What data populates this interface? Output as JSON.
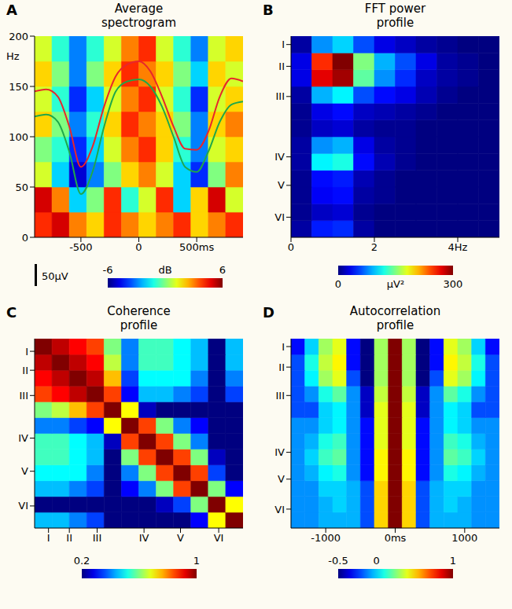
{
  "chart_data": [
    {
      "panel": "A",
      "type": "heatmap",
      "title": "Average spectrogram",
      "y_label": "Hz",
      "xlim": [
        -900,
        900
      ],
      "xticks": [
        -500,
        0,
        {
          "value": 500,
          "label": "500ms"
        }
      ],
      "ylim": [
        0,
        200
      ],
      "yticks": [
        0,
        50,
        100,
        150,
        200
      ],
      "x_edges": [
        -900,
        -750,
        -600,
        -450,
        -300,
        -150,
        0,
        150,
        300,
        450,
        600,
        750,
        900
      ],
      "y_edges": [
        0,
        25,
        50,
        75,
        100,
        125,
        150,
        175,
        200
      ],
      "cells": [
        [
          4,
          5,
          3,
          2,
          4,
          3,
          2,
          3,
          4,
          2,
          3,
          4
        ],
        [
          5,
          3,
          -2,
          0,
          4,
          -1,
          1,
          4,
          -2,
          2,
          5,
          1
        ],
        [
          1,
          -2,
          -5,
          -3,
          0,
          2,
          3,
          1,
          -2,
          -4,
          0,
          3
        ],
        [
          0,
          -1,
          -4,
          -2,
          1,
          3,
          4,
          2,
          -1,
          -3,
          1,
          2
        ],
        [
          2,
          0,
          -3,
          -1,
          2,
          4,
          3,
          2,
          0,
          -3,
          2,
          3
        ],
        [
          1,
          -1,
          -4,
          -2,
          1,
          3,
          4,
          1,
          -1,
          -4,
          1,
          2
        ],
        [
          2,
          0,
          -3,
          0,
          2,
          4,
          3,
          2,
          0,
          -2,
          2,
          1
        ],
        [
          1,
          -1,
          -3,
          -1,
          1,
          3,
          4,
          1,
          -1,
          -3,
          1,
          2
        ]
      ],
      "colorbar": {
        "range": [
          -6,
          6
        ],
        "ticks": [
          -6,
          6
        ],
        "label": "dB"
      },
      "x": [
        -900,
        -800,
        -700,
        -600,
        -500,
        -400,
        -300,
        -200,
        -100,
        0,
        100,
        200,
        300,
        400,
        500,
        600,
        700,
        800,
        900
      ],
      "series": [
        {
          "color": "#e8262b",
          "values": [
            145,
            147,
            140,
            110,
            70,
            90,
            130,
            160,
            172,
            175,
            165,
            140,
            110,
            88,
            87,
            105,
            140,
            158,
            155
          ]
        },
        {
          "color": "#1fa84a",
          "values": [
            120,
            122,
            115,
            85,
            43,
            65,
            110,
            145,
            155,
            157,
            150,
            130,
            100,
            70,
            65,
            85,
            115,
            132,
            135
          ]
        }
      ],
      "scale_bar": {
        "label": "50µV"
      }
    },
    {
      "panel": "B",
      "type": "heatmap",
      "title": "FFT power profile",
      "xlim": [
        0,
        5
      ],
      "xticks": [
        0,
        2,
        {
          "value": 4,
          "label": "4Hz"
        }
      ],
      "ylim": [
        0,
        12
      ],
      "yticks": [
        {
          "value": 11.5,
          "label": "I"
        },
        {
          "value": 10.2,
          "label": "II"
        },
        {
          "value": 8.4,
          "label": "III"
        },
        {
          "value": 4.8,
          "label": "IV"
        },
        {
          "value": 3.1,
          "label": "V"
        },
        {
          "value": 1.2,
          "label": "VI"
        }
      ],
      "x_edges": [
        0,
        0.5,
        1,
        1.5,
        2,
        2.5,
        3,
        3.5,
        4,
        4.5,
        5
      ],
      "y_edges": [
        0,
        1,
        2,
        3,
        4,
        5,
        6,
        7,
        8,
        9,
        10,
        11,
        12
      ],
      "cells": [
        [
          10,
          45,
          50,
          10,
          0,
          0,
          0,
          0,
          0,
          0
        ],
        [
          5,
          20,
          25,
          5,
          0,
          0,
          0,
          0,
          0,
          0
        ],
        [
          5,
          35,
          40,
          10,
          5,
          0,
          0,
          0,
          0,
          0
        ],
        [
          5,
          40,
          45,
          15,
          5,
          0,
          0,
          0,
          0,
          0
        ],
        [
          10,
          110,
          120,
          40,
          15,
          5,
          0,
          0,
          0,
          0
        ],
        [
          10,
          80,
          90,
          30,
          10,
          5,
          0,
          0,
          0,
          0
        ],
        [
          5,
          20,
          25,
          10,
          5,
          5,
          0,
          0,
          0,
          0
        ],
        [
          5,
          30,
          40,
          20,
          15,
          10,
          5,
          0,
          0,
          0
        ],
        [
          10,
          90,
          110,
          60,
          40,
          30,
          15,
          5,
          0,
          0
        ],
        [
          30,
          270,
          290,
          140,
          80,
          50,
          20,
          10,
          5,
          0
        ],
        [
          30,
          250,
          300,
          150,
          90,
          60,
          30,
          10,
          5,
          0
        ],
        [
          10,
          80,
          100,
          60,
          30,
          20,
          10,
          5,
          0,
          0
        ]
      ],
      "colorbar": {
        "range": [
          0,
          300
        ],
        "ticks": [
          0,
          300
        ],
        "label": "µV²"
      }
    },
    {
      "panel": "C",
      "type": "heatmap",
      "title": "Coherence profile",
      "xlim": [
        0,
        12
      ],
      "xticks": [
        {
          "value": 0.8,
          "label": "I"
        },
        {
          "value": 2,
          "label": "II"
        },
        {
          "value": 3.6,
          "label": "III"
        },
        {
          "value": 6.3,
          "label": "IV"
        },
        {
          "value": 8.4,
          "label": "V"
        },
        {
          "value": 10.6,
          "label": "VI"
        }
      ],
      "ylim": [
        0,
        12
      ],
      "yticks": [
        {
          "value": 11.2,
          "label": "I"
        },
        {
          "value": 10,
          "label": "II"
        },
        {
          "value": 8.4,
          "label": "III"
        },
        {
          "value": 5.7,
          "label": "IV"
        },
        {
          "value": 3.6,
          "label": "V"
        },
        {
          "value": 1.4,
          "label": "VI"
        }
      ],
      "x_edges": [
        0,
        1,
        2,
        3,
        4,
        5,
        6,
        7,
        8,
        9,
        10,
        11,
        12
      ],
      "y_edges": [
        0,
        1,
        2,
        3,
        4,
        5,
        6,
        7,
        8,
        9,
        10,
        11,
        12
      ],
      "cells": [
        [
          0.45,
          0.45,
          0.4,
          0.35,
          0.2,
          0.2,
          0.2,
          0.2,
          0.2,
          0.3,
          0.7,
          1
        ],
        [
          0.2,
          0.2,
          0.2,
          0.2,
          0.2,
          0.2,
          0.2,
          0.25,
          0.35,
          0.6,
          1,
          0.7
        ],
        [
          0.45,
          0.45,
          0.4,
          0.35,
          0.2,
          0.3,
          0.4,
          0.6,
          0.85,
          1,
          0.6,
          0.3
        ],
        [
          0.5,
          0.5,
          0.5,
          0.4,
          0.2,
          0.4,
          0.6,
          0.85,
          1,
          0.85,
          0.35,
          0.2
        ],
        [
          0.55,
          0.55,
          0.5,
          0.45,
          0.2,
          0.6,
          0.85,
          1,
          0.85,
          0.6,
          0.25,
          0.2
        ],
        [
          0.55,
          0.55,
          0.5,
          0.45,
          0.25,
          0.85,
          1,
          0.85,
          0.6,
          0.4,
          0.2,
          0.2
        ],
        [
          0.4,
          0.4,
          0.35,
          0.3,
          0.7,
          1,
          0.85,
          0.6,
          0.4,
          0.3,
          0.2,
          0.2
        ],
        [
          0.6,
          0.65,
          0.75,
          0.85,
          1,
          0.7,
          0.25,
          0.2,
          0.2,
          0.2,
          0.2,
          0.2
        ],
        [
          0.85,
          0.9,
          0.95,
          1,
          0.85,
          0.3,
          0.45,
          0.45,
          0.4,
          0.35,
          0.2,
          0.35
        ],
        [
          0.9,
          0.95,
          1,
          0.95,
          0.75,
          0.35,
          0.5,
          0.5,
          0.5,
          0.4,
          0.2,
          0.4
        ],
        [
          0.95,
          1,
          0.95,
          0.9,
          0.65,
          0.4,
          0.55,
          0.55,
          0.5,
          0.45,
          0.2,
          0.45
        ],
        [
          1,
          0.95,
          0.9,
          0.85,
          0.6,
          0.4,
          0.55,
          0.55,
          0.5,
          0.45,
          0.2,
          0.45
        ]
      ],
      "colorbar": {
        "range": [
          0.2,
          1
        ],
        "ticks": [
          0.2,
          1
        ]
      }
    },
    {
      "panel": "D",
      "type": "heatmap",
      "title": "Autocorrelation profile",
      "xlim": [
        -1500,
        1500
      ],
      "xticks": [
        -1000,
        {
          "value": 0,
          "label": "0ms"
        },
        1000
      ],
      "ylim": [
        0,
        12
      ],
      "yticks": [
        {
          "value": 11.5,
          "label": "I"
        },
        {
          "value": 10.2,
          "label": "II"
        },
        {
          "value": 8.4,
          "label": "III"
        },
        {
          "value": 4.8,
          "label": "IV"
        },
        {
          "value": 3.1,
          "label": "V"
        },
        {
          "value": 1.2,
          "label": "VI"
        }
      ],
      "x_edges": [
        -1500,
        -1300,
        -1100,
        -900,
        -700,
        -500,
        -300,
        -100,
        100,
        300,
        500,
        700,
        900,
        1100,
        1300,
        1500
      ],
      "y_edges": [
        0,
        1,
        2,
        3,
        4,
        5,
        6,
        7,
        8,
        9,
        10,
        11,
        12
      ],
      "cells": [
        [
          -0.1,
          -0.1,
          -0.05,
          -0.05,
          -0.05,
          -0.2,
          0.5,
          1,
          0.5,
          -0.2,
          -0.05,
          -0.05,
          -0.05,
          -0.1,
          -0.1
        ],
        [
          -0.1,
          -0.1,
          -0.05,
          0,
          -0.05,
          -0.2,
          0.5,
          1,
          0.5,
          -0.2,
          -0.05,
          0,
          -0.05,
          -0.1,
          -0.1
        ],
        [
          -0.1,
          -0.1,
          0,
          0,
          -0.05,
          -0.2,
          0.5,
          1,
          0.5,
          -0.2,
          -0.05,
          0,
          0,
          -0.1,
          -0.1
        ],
        [
          -0.1,
          -0.05,
          0.05,
          0.1,
          -0.1,
          -0.3,
          0.45,
          1,
          0.45,
          -0.3,
          -0.1,
          0.1,
          0.05,
          -0.05,
          -0.1
        ],
        [
          -0.1,
          0,
          0.15,
          0.2,
          -0.1,
          -0.3,
          0.45,
          1,
          0.45,
          -0.3,
          -0.1,
          0.2,
          0.15,
          0,
          -0.1
        ],
        [
          -0.1,
          -0.05,
          0.1,
          0.15,
          -0.1,
          -0.3,
          0.4,
          1,
          0.4,
          -0.3,
          -0.1,
          0.15,
          0.1,
          -0.05,
          -0.1
        ],
        [
          -0.1,
          -0.1,
          0,
          0.05,
          -0.1,
          -0.3,
          0.4,
          1,
          0.4,
          -0.3,
          -0.1,
          0.05,
          0,
          -0.1,
          -0.1
        ],
        [
          -0.2,
          -0.2,
          0,
          0.05,
          -0.1,
          -0.4,
          0.4,
          1,
          0.4,
          -0.4,
          -0.1,
          0.05,
          0,
          -0.2,
          -0.2
        ],
        [
          -0.2,
          -0.1,
          0.1,
          0.2,
          -0.1,
          -0.4,
          0.35,
          1,
          0.35,
          -0.4,
          -0.1,
          0.2,
          0.1,
          -0.1,
          -0.2
        ],
        [
          -0.2,
          0.05,
          0.3,
          0.4,
          -0.2,
          -0.5,
          0.3,
          1,
          0.3,
          -0.5,
          -0.2,
          0.4,
          0.3,
          0.05,
          -0.2
        ],
        [
          -0.2,
          0.1,
          0.35,
          0.45,
          -0.3,
          -0.5,
          0.3,
          1,
          0.3,
          -0.5,
          -0.3,
          0.45,
          0.35,
          0.1,
          -0.2
        ],
        [
          -0.3,
          0,
          0.3,
          0.4,
          -0.3,
          -0.5,
          0.3,
          1,
          0.3,
          -0.5,
          -0.3,
          0.4,
          0.3,
          0,
          -0.3
        ]
      ],
      "colorbar": {
        "range": [
          -0.5,
          1
        ],
        "ticks": [
          -0.5,
          0,
          1
        ]
      }
    }
  ]
}
